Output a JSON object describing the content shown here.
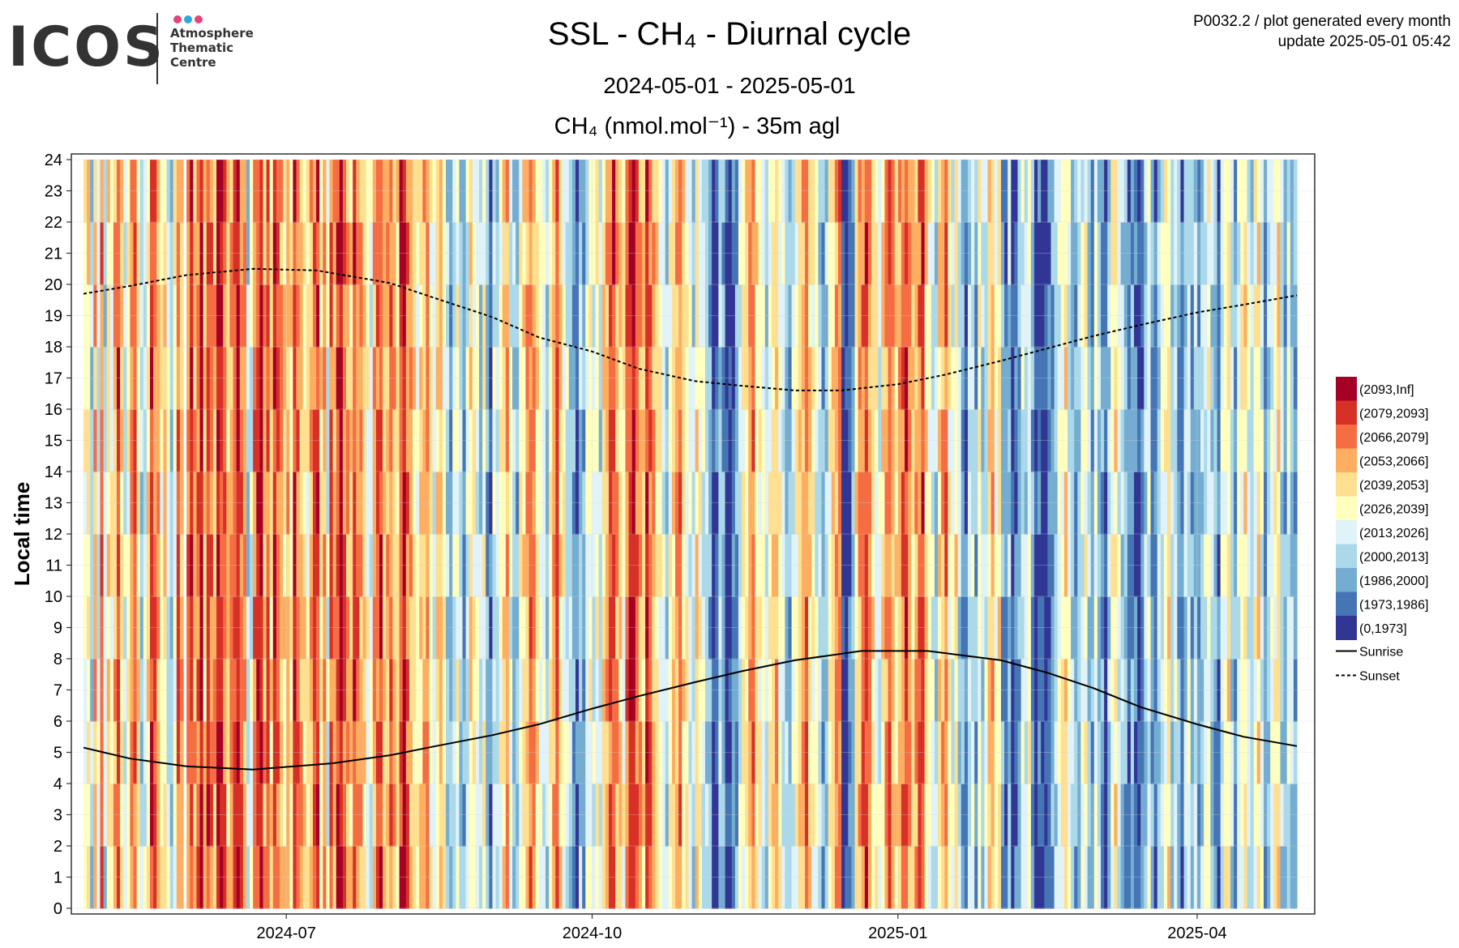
{
  "logo": {
    "wordmark": "ICOS",
    "lines": [
      "Atmosphere",
      "Thematic",
      "Centre"
    ],
    "dot_colors": [
      "#e5447b",
      "#2ea7e0",
      "#e5447b"
    ]
  },
  "header": {
    "title": "SSL - CH₄ - Diurnal cycle",
    "date_range": "2024-05-01 - 2025-05-01",
    "plot_label": "CH₄ (nmol.mol⁻¹) - 35m agl",
    "meta_line1": "P0032.2 / plot generated every month",
    "meta_line2": "update  2025-05-01 05:42"
  },
  "chart_data": {
    "type": "heatmap",
    "title": "SSL - CH₄ - Diurnal cycle",
    "xlabel": "",
    "ylabel": "Local time",
    "x_range": [
      "2024-05-01",
      "2025-05-01"
    ],
    "x_ticks": [
      "2024-07",
      "2024-10",
      "2025-01",
      "2025-04"
    ],
    "x_tick_dates": [
      "2024-07-01",
      "2024-10-01",
      "2025-01-01",
      "2025-04-01"
    ],
    "ylim": [
      0,
      24
    ],
    "y_ticks": [
      0,
      1,
      2,
      3,
      4,
      5,
      6,
      7,
      8,
      9,
      10,
      11,
      12,
      13,
      14,
      15,
      16,
      17,
      18,
      19,
      20,
      21,
      22,
      23,
      24
    ],
    "grid": true,
    "legend_position": "right",
    "bins": [
      {
        "label": "(2093,Inf]",
        "color": "#a50026"
      },
      {
        "label": "(2079,2093]",
        "color": "#d73027"
      },
      {
        "label": "(2066,2079]",
        "color": "#f46d43"
      },
      {
        "label": "(2053,2066]",
        "color": "#fdae61"
      },
      {
        "label": "(2039,2053]",
        "color": "#fee090"
      },
      {
        "label": "(2026,2039]",
        "color": "#ffffbf"
      },
      {
        "label": "(2013,2026]",
        "color": "#e0f3f8"
      },
      {
        "label": "(2000,2013]",
        "color": "#abd9e9"
      },
      {
        "label": "(1986,2000]",
        "color": "#74add1"
      },
      {
        "label": "(1973,1986]",
        "color": "#4575b4"
      },
      {
        "label": "(0,1973]",
        "color": "#313695"
      }
    ],
    "lines": [
      {
        "name": "Sunrise",
        "style": "solid",
        "color": "#000000",
        "points": [
          [
            "2024-05-01",
            5.15
          ],
          [
            "2024-05-15",
            4.8
          ],
          [
            "2024-06-01",
            4.55
          ],
          [
            "2024-06-21",
            4.45
          ],
          [
            "2024-07-15",
            4.65
          ],
          [
            "2024-08-01",
            4.9
          ],
          [
            "2024-08-15",
            5.2
          ],
          [
            "2024-09-01",
            5.55
          ],
          [
            "2024-09-15",
            5.9
          ],
          [
            "2024-10-01",
            6.4
          ],
          [
            "2024-10-15",
            6.8
          ],
          [
            "2024-11-01",
            7.25
          ],
          [
            "2024-11-15",
            7.6
          ],
          [
            "2024-12-01",
            7.95
          ],
          [
            "2024-12-21",
            8.25
          ],
          [
            "2025-01-10",
            8.25
          ],
          [
            "2025-02-01",
            7.95
          ],
          [
            "2025-02-15",
            7.55
          ],
          [
            "2025-03-01",
            7.05
          ],
          [
            "2025-03-15",
            6.45
          ],
          [
            "2025-04-01",
            5.9
          ],
          [
            "2025-04-15",
            5.5
          ],
          [
            "2025-05-01",
            5.2
          ]
        ]
      },
      {
        "name": "Sunset",
        "style": "dashed",
        "color": "#000000",
        "points": [
          [
            "2024-05-01",
            19.7
          ],
          [
            "2024-05-15",
            19.95
          ],
          [
            "2024-06-01",
            20.3
          ],
          [
            "2024-06-21",
            20.5
          ],
          [
            "2024-07-10",
            20.45
          ],
          [
            "2024-08-01",
            20.05
          ],
          [
            "2024-08-15",
            19.55
          ],
          [
            "2024-09-01",
            18.95
          ],
          [
            "2024-09-15",
            18.3
          ],
          [
            "2024-10-01",
            17.85
          ],
          [
            "2024-10-15",
            17.3
          ],
          [
            "2024-11-01",
            16.9
          ],
          [
            "2024-11-15",
            16.75
          ],
          [
            "2024-12-01",
            16.6
          ],
          [
            "2024-12-15",
            16.6
          ],
          [
            "2025-01-01",
            16.8
          ],
          [
            "2025-01-15",
            17.1
          ],
          [
            "2025-02-01",
            17.55
          ],
          [
            "2025-02-15",
            17.95
          ],
          [
            "2025-03-01",
            18.35
          ],
          [
            "2025-03-15",
            18.7
          ],
          [
            "2025-04-01",
            19.1
          ],
          [
            "2025-04-15",
            19.35
          ],
          [
            "2025-05-01",
            19.65
          ]
        ]
      }
    ],
    "series_columns": [
      {
        "from": "2024-05-01",
        "levels": [
          5,
          6,
          3,
          7,
          4,
          8,
          3,
          6,
          5,
          7,
          9,
          6,
          4,
          5,
          7,
          8,
          6,
          3,
          4,
          6,
          9,
          8,
          7,
          5,
          6,
          4,
          3,
          5,
          8,
          7
        ]
      },
      {
        "from": "2024-06-01",
        "levels": [
          8,
          9,
          7,
          8,
          10,
          6,
          9,
          8,
          7,
          10,
          9,
          8,
          6,
          7,
          9,
          10,
          8,
          7,
          3,
          4,
          8,
          9,
          10,
          7,
          8,
          6,
          9,
          8,
          7,
          6
        ]
      },
      {
        "from": "2024-07-01",
        "levels": [
          7,
          6,
          9,
          8,
          7,
          6,
          5,
          7,
          8,
          9,
          6,
          7,
          4,
          8,
          7,
          9,
          10,
          8,
          7,
          6,
          9,
          8,
          7,
          6,
          5,
          4,
          7,
          8,
          9,
          6,
          7
        ]
      },
      {
        "from": "2024-08-01",
        "levels": [
          8,
          7,
          6,
          9,
          10,
          8,
          7,
          6,
          5,
          6,
          7,
          8,
          5,
          4,
          6,
          7,
          5,
          3,
          2,
          4,
          5,
          3,
          2,
          4,
          6,
          5,
          4,
          3,
          5,
          2,
          1
        ]
      },
      {
        "from": "2024-09-01",
        "levels": [
          4,
          3,
          5,
          6,
          7,
          4,
          3,
          2,
          5,
          6,
          7,
          8,
          7,
          6,
          5,
          4,
          3,
          6,
          7,
          8,
          6,
          5,
          4,
          3,
          2,
          1,
          3,
          2,
          4,
          5
        ]
      },
      {
        "from": "2024-10-01",
        "levels": [
          4,
          5,
          3,
          6,
          7,
          8,
          9,
          7,
          6,
          5,
          8,
          9,
          10,
          8,
          7,
          6,
          9,
          8,
          7,
          6,
          5,
          4,
          3,
          5,
          6,
          7,
          8,
          6,
          5,
          4,
          3
        ]
      },
      {
        "from": "2024-11-01",
        "levels": [
          6,
          5,
          4,
          3,
          2,
          0,
          1,
          3,
          2,
          0,
          0,
          1,
          2,
          4,
          5,
          6,
          7,
          8,
          6,
          5,
          4,
          3,
          5,
          6,
          7,
          5,
          4,
          3,
          2,
          4
        ]
      },
      {
        "from": "2024-12-01",
        "levels": [
          5,
          6,
          7,
          8,
          6,
          5,
          4,
          3,
          2,
          3,
          5,
          6,
          7,
          8,
          0,
          0,
          1,
          2,
          6,
          7,
          8,
          9,
          7,
          6,
          5,
          4,
          6,
          7,
          8,
          7,
          6
        ]
      },
      {
        "from": "2025-01-01",
        "levels": [
          7,
          8,
          9,
          7,
          6,
          7,
          8,
          9,
          6,
          5,
          4,
          3,
          6,
          7,
          8,
          5,
          4,
          6,
          3,
          2,
          1,
          3,
          4,
          2,
          5,
          3,
          4,
          6,
          7,
          5,
          6
        ]
      },
      {
        "from": "2025-02-01",
        "levels": [
          2,
          1,
          3,
          0,
          1,
          2,
          4,
          3,
          5,
          2,
          0,
          1,
          0,
          0,
          1,
          2,
          3,
          4,
          5,
          6,
          4,
          3,
          2,
          3,
          4,
          5,
          3,
          2
        ]
      },
      {
        "from": "2025-03-01",
        "levels": [
          4,
          3,
          2,
          1,
          3,
          5,
          6,
          4,
          3,
          2,
          1,
          2,
          1,
          0,
          1,
          3,
          4,
          2,
          1,
          3,
          4,
          5,
          6,
          3,
          4,
          2,
          1,
          3,
          4,
          2,
          3
        ]
      },
      {
        "from": "2025-04-01",
        "levels": [
          2,
          3,
          4,
          5,
          3,
          2,
          1,
          4,
          5,
          6,
          3,
          2,
          4,
          5,
          6,
          4,
          3,
          5,
          6,
          4,
          2,
          3,
          4,
          5,
          6,
          3,
          2,
          4,
          3,
          2
        ]
      }
    ]
  }
}
